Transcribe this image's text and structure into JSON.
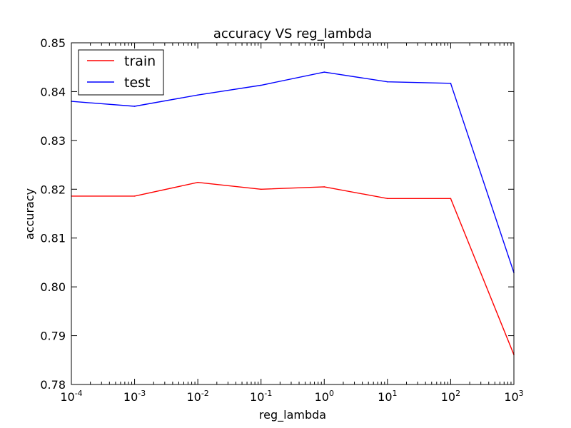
{
  "chart_data": {
    "type": "line",
    "title": "accuracy VS reg_lambda",
    "xlabel": "reg_lambda",
    "ylabel": "accuracy",
    "x_scale": "log",
    "x": [
      "10^-4",
      "10^-3",
      "10^-2",
      "10^-1",
      "10^0",
      "10^1",
      "10^2",
      "10^3"
    ],
    "x_values": [
      0.0001,
      0.001,
      0.01,
      0.1,
      1,
      10,
      100,
      1000
    ],
    "x_ticks": [
      {
        "base": "10",
        "exp": "-4"
      },
      {
        "base": "10",
        "exp": "-3"
      },
      {
        "base": "10",
        "exp": "-2"
      },
      {
        "base": "10",
        "exp": "-1"
      },
      {
        "base": "10",
        "exp": "0"
      },
      {
        "base": "10",
        "exp": "1"
      },
      {
        "base": "10",
        "exp": "2"
      },
      {
        "base": "10",
        "exp": "3"
      }
    ],
    "ylim": [
      0.78,
      0.85
    ],
    "y_ticks": [
      "0.78",
      "0.79",
      "0.80",
      "0.81",
      "0.82",
      "0.83",
      "0.84",
      "0.85"
    ],
    "series": [
      {
        "name": "train",
        "color": "#ff0000",
        "values": [
          0.8186,
          0.8186,
          0.8214,
          0.82,
          0.8205,
          0.8181,
          0.8181,
          0.7861
        ]
      },
      {
        "name": "test",
        "color": "#0000ff",
        "values": [
          0.838,
          0.837,
          0.8393,
          0.8413,
          0.844,
          0.842,
          0.8417,
          0.8029
        ]
      }
    ],
    "legend_position": "top-left",
    "grid": false
  }
}
